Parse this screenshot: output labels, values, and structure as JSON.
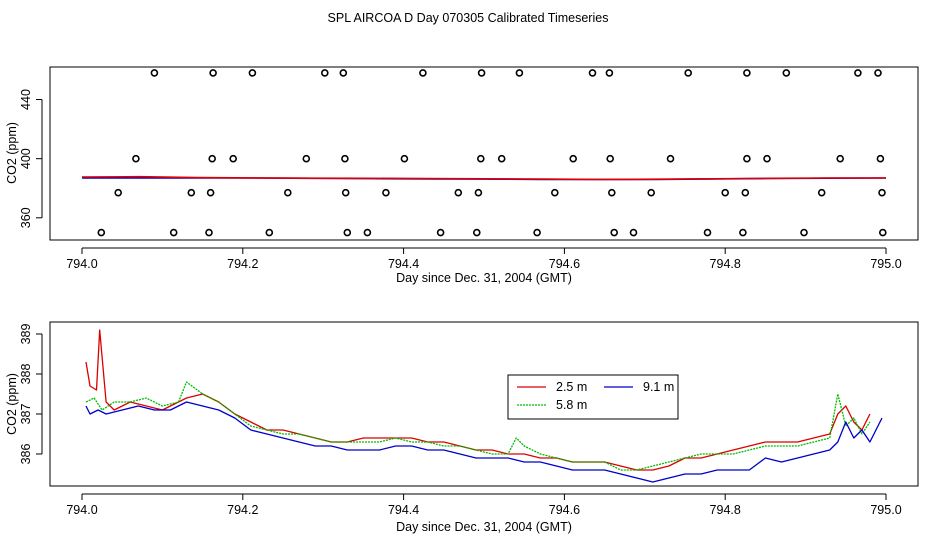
{
  "title": "SPL AIRCOA D  Day 070305  Calibrated Timeseries",
  "colors": {
    "red": "#dd0000",
    "green": "#00bb00",
    "blue": "#0000cc",
    "black": "#000000"
  },
  "chart_data": [
    {
      "type": "scatter",
      "name": "top-panel",
      "xlabel": "Day since Dec. 31, 2004 (GMT)",
      "ylabel": "CO2 (ppm)",
      "xlim": [
        794.0,
        795.0
      ],
      "ylim": [
        345,
        462
      ],
      "xticks": [
        794.0,
        794.2,
        794.4,
        794.6,
        794.8,
        795.0
      ],
      "xtick_labels": [
        "794.0",
        "794.2",
        "794.4",
        "794.6",
        "794.8",
        "795.0"
      ],
      "yticks": [
        360,
        400,
        440
      ],
      "ytick_labels": [
        "360",
        "400",
        "440"
      ],
      "point_series": {
        "y458": {
          "y": 458,
          "x": [
            794.09,
            794.163,
            794.212,
            794.302,
            794.325,
            794.424,
            794.497,
            794.544,
            794.635,
            794.656,
            794.754,
            794.827,
            794.876,
            794.965,
            794.99
          ]
        },
        "y400": {
          "y": 400,
          "x": [
            794.067,
            794.162,
            794.188,
            794.279,
            794.327,
            794.401,
            794.496,
            794.522,
            794.611,
            794.657,
            794.732,
            794.827,
            794.852,
            794.943,
            794.993
          ]
        },
        "y377": {
          "y": 377,
          "x": [
            794.045,
            794.136,
            794.16,
            794.256,
            794.328,
            794.378,
            794.468,
            794.493,
            794.588,
            794.659,
            794.708,
            794.8,
            794.825,
            794.92,
            794.995
          ]
        },
        "y350": {
          "y": 350,
          "x": [
            794.024,
            794.114,
            794.158,
            794.233,
            794.33,
            794.355,
            794.446,
            794.491,
            794.566,
            794.662,
            794.686,
            794.778,
            794.822,
            794.898,
            794.996
          ]
        }
      },
      "lines": [
        {
          "name": "blue",
          "y": [
            387.0,
            387.0,
            387.0,
            386.9,
            386.7,
            386.5,
            386.3,
            386.2,
            386.0,
            385.9,
            386.0,
            386.3,
            386.6,
            386.8,
            386.9
          ],
          "x_start": 794.0,
          "x_end": 795.0
        },
        {
          "name": "red",
          "y": [
            387.6,
            387.8,
            387.2,
            387.0,
            386.8,
            386.7,
            386.5,
            386.4,
            386.2,
            386.0,
            386.1,
            386.4,
            386.7,
            386.9,
            386.9
          ],
          "x_start": 794.0,
          "x_end": 795.0
        }
      ]
    },
    {
      "type": "line",
      "name": "bottom-panel",
      "xlabel": "Day since Dec. 31, 2004 (GMT)",
      "ylabel": "CO2 (ppm)",
      "xlim": [
        794.0,
        795.0
      ],
      "ylim": [
        385.2,
        389.3
      ],
      "xticks": [
        794.0,
        794.2,
        794.4,
        794.6,
        794.8,
        795.0
      ],
      "xtick_labels": [
        "794.0",
        "794.2",
        "794.4",
        "794.6",
        "794.8",
        "795.0"
      ],
      "yticks": [
        386,
        387,
        388,
        389
      ],
      "ytick_labels": [
        "386",
        "387",
        "388",
        "389"
      ],
      "legend": [
        "2.5 m",
        "5.8 m",
        "9.1 m"
      ],
      "series": [
        {
          "name": "2.5 m",
          "color": "red",
          "x": [
            794.005,
            794.01,
            794.018,
            794.022,
            794.03,
            794.04,
            794.06,
            794.08,
            794.1,
            794.12,
            794.13,
            794.15,
            794.17,
            794.19,
            794.21,
            794.23,
            794.25,
            794.27,
            794.29,
            794.31,
            794.33,
            794.35,
            794.37,
            794.39,
            794.41,
            794.43,
            794.45,
            794.47,
            794.49,
            794.51,
            794.53,
            794.55,
            794.57,
            794.59,
            794.61,
            794.63,
            794.65,
            794.67,
            794.69,
            794.71,
            794.73,
            794.75,
            794.77,
            794.79,
            794.81,
            794.83,
            794.85,
            794.87,
            794.89,
            794.91,
            794.93,
            794.94,
            794.95,
            794.96,
            794.97,
            794.98
          ],
          "y": [
            388.3,
            387.7,
            387.6,
            389.1,
            387.3,
            387.1,
            387.3,
            387.2,
            387.1,
            387.3,
            387.4,
            387.5,
            387.3,
            387.0,
            386.8,
            386.6,
            386.6,
            386.5,
            386.4,
            386.3,
            386.3,
            386.4,
            386.4,
            386.4,
            386.4,
            386.3,
            386.3,
            386.2,
            386.1,
            386.1,
            386.0,
            386.0,
            385.9,
            385.9,
            385.8,
            385.8,
            385.8,
            385.7,
            385.6,
            385.6,
            385.7,
            385.9,
            385.9,
            386.0,
            386.1,
            386.2,
            386.3,
            386.3,
            386.3,
            386.4,
            386.5,
            387.0,
            387.2,
            386.8,
            386.6,
            387.0
          ]
        },
        {
          "name": "5.8 m",
          "color": "green",
          "x": [
            794.005,
            794.015,
            794.025,
            794.04,
            794.06,
            794.08,
            794.1,
            794.12,
            794.13,
            794.15,
            794.17,
            794.19,
            794.21,
            794.23,
            794.25,
            794.27,
            794.29,
            794.31,
            794.33,
            794.35,
            794.37,
            794.39,
            794.41,
            794.43,
            794.45,
            794.47,
            794.49,
            794.51,
            794.53,
            794.54,
            794.55,
            794.57,
            794.59,
            794.61,
            794.63,
            794.65,
            794.67,
            794.69,
            794.71,
            794.73,
            794.75,
            794.77,
            794.79,
            794.81,
            794.83,
            794.85,
            794.87,
            794.89,
            794.91,
            794.93,
            794.94,
            794.95,
            794.96,
            794.97,
            794.98
          ],
          "y": [
            387.3,
            387.4,
            387.1,
            387.3,
            387.3,
            387.4,
            387.2,
            387.3,
            387.8,
            387.5,
            387.3,
            387.0,
            386.7,
            386.6,
            386.5,
            386.5,
            386.4,
            386.3,
            386.3,
            386.3,
            386.3,
            386.4,
            386.3,
            386.3,
            386.2,
            386.2,
            386.1,
            386.0,
            386.0,
            386.4,
            386.2,
            386.0,
            385.9,
            385.8,
            385.8,
            385.8,
            385.6,
            385.6,
            385.7,
            385.8,
            385.9,
            386.0,
            386.0,
            386.0,
            386.1,
            386.2,
            386.2,
            386.2,
            386.3,
            386.4,
            387.5,
            386.7,
            386.9,
            386.5,
            386.8
          ]
        },
        {
          "name": "9.1 m",
          "color": "blue",
          "x": [
            794.005,
            794.01,
            794.02,
            794.03,
            794.05,
            794.07,
            794.09,
            794.11,
            794.13,
            794.15,
            794.17,
            794.19,
            794.21,
            794.23,
            794.25,
            794.27,
            794.29,
            794.31,
            794.33,
            794.35,
            794.37,
            794.39,
            794.41,
            794.43,
            794.45,
            794.47,
            794.49,
            794.51,
            794.53,
            794.55,
            794.57,
            794.59,
            794.61,
            794.63,
            794.65,
            794.67,
            794.69,
            794.71,
            794.73,
            794.75,
            794.77,
            794.79,
            794.81,
            794.83,
            794.85,
            794.87,
            794.89,
            794.91,
            794.93,
            794.94,
            794.95,
            794.96,
            794.97,
            794.98,
            794.995
          ],
          "y": [
            387.2,
            387.0,
            387.1,
            387.0,
            387.1,
            387.2,
            387.1,
            387.1,
            387.3,
            387.2,
            387.1,
            386.9,
            386.6,
            386.5,
            386.4,
            386.3,
            386.2,
            386.2,
            386.1,
            386.1,
            386.1,
            386.2,
            386.2,
            386.1,
            386.1,
            386.0,
            385.9,
            385.9,
            385.9,
            385.8,
            385.8,
            385.7,
            385.6,
            385.6,
            385.6,
            385.5,
            385.4,
            385.3,
            385.4,
            385.5,
            385.5,
            385.6,
            385.6,
            385.6,
            385.9,
            385.8,
            385.9,
            386.0,
            386.1,
            386.3,
            386.8,
            386.4,
            386.6,
            386.3,
            386.9
          ]
        }
      ]
    }
  ]
}
